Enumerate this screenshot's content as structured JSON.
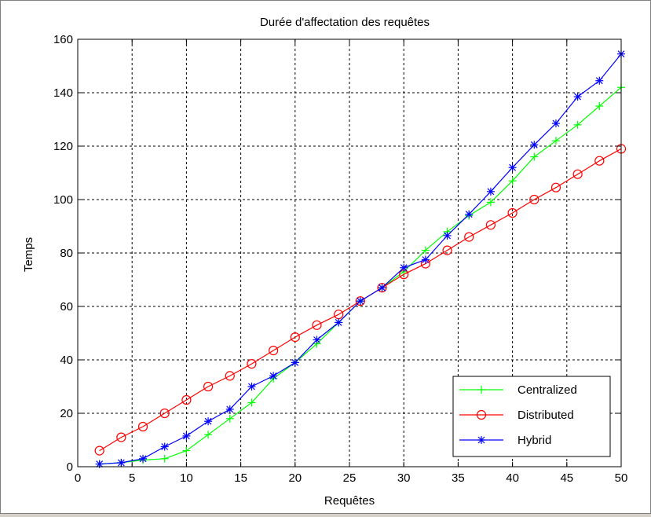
{
  "chart_data": {
    "type": "line",
    "title": "Durée d'affectation des requêtes",
    "xlabel": "Requêtes",
    "ylabel": "Temps",
    "xlim": [
      0,
      50
    ],
    "ylim": [
      0,
      160
    ],
    "xticks": [
      0,
      5,
      10,
      15,
      20,
      25,
      30,
      35,
      40,
      45,
      50
    ],
    "yticks": [
      0,
      20,
      40,
      60,
      80,
      100,
      120,
      140,
      160
    ],
    "grid": true,
    "legend_position": "bottom-right",
    "x": [
      2,
      4,
      6,
      8,
      10,
      12,
      14,
      16,
      18,
      20,
      22,
      24,
      26,
      28,
      30,
      32,
      34,
      36,
      38,
      40,
      42,
      44,
      46,
      48,
      50
    ],
    "series": [
      {
        "name": "Centralized",
        "color": "#00ff00",
        "marker": "plus",
        "values": [
          1,
          1.5,
          2.5,
          3,
          6,
          12,
          18,
          24,
          33,
          39,
          46,
          54,
          62,
          67,
          73,
          81,
          88,
          94,
          99,
          107,
          116,
          122,
          128,
          135,
          142
        ]
      },
      {
        "name": "Distributed",
        "color": "#ff0000",
        "marker": "circle",
        "values": [
          6,
          11,
          15,
          20,
          25,
          30,
          34,
          38.5,
          43.5,
          48.5,
          53,
          57,
          62,
          67,
          72,
          76,
          81,
          86,
          90.5,
          95,
          100,
          104.5,
          109.5,
          114.5,
          119
        ]
      },
      {
        "name": "Hybrid",
        "color": "#0000ff",
        "marker": "star",
        "values": [
          1,
          1.5,
          3,
          7.5,
          11.5,
          17,
          21.5,
          30,
          34,
          39,
          47.5,
          54,
          62,
          67,
          74.5,
          77.5,
          86.5,
          94.5,
          103,
          112,
          120.5,
          128.5,
          138.5,
          144.5,
          154.5
        ]
      }
    ]
  }
}
